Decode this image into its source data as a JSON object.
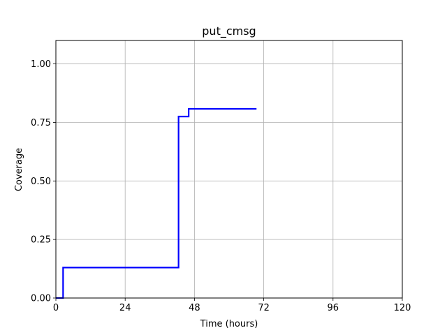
{
  "chart_data": {
    "type": "line",
    "title": "put_cmsg",
    "xlabel": "Time (hours)",
    "ylabel": "Coverage",
    "xlim": [
      0,
      120
    ],
    "ylim": [
      0,
      1.1
    ],
    "xticks": [
      0,
      24,
      48,
      72,
      96,
      120
    ],
    "xtick_labels": [
      "0",
      "24",
      "48",
      "72",
      "96",
      "120"
    ],
    "yticks": [
      0,
      0.25,
      0.5,
      0.75,
      1.0
    ],
    "ytick_labels": [
      "0.00",
      "0.25",
      "0.50",
      "0.75",
      "1.00"
    ],
    "grid": true,
    "series": [
      {
        "color": "#0000ff",
        "step": true,
        "x": [
          0,
          2.5,
          42.5,
          46.0,
          69.5
        ],
        "y": [
          0,
          0.13,
          0.775,
          0.808,
          0.808
        ]
      }
    ]
  }
}
